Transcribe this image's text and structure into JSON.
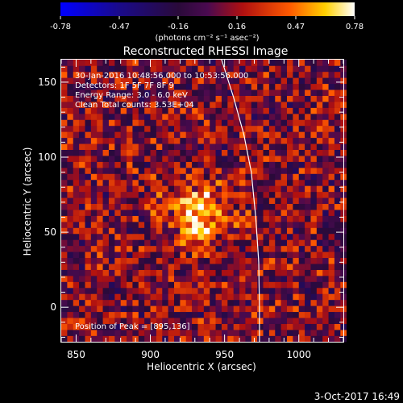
{
  "colorbar": {
    "ticks": [
      "-0.78",
      "-0.47",
      "-0.16",
      "0.16",
      "0.47",
      "0.78"
    ],
    "units": "(photons cm⁻² s⁻¹ asec⁻²)",
    "range": [
      -0.78,
      0.78
    ]
  },
  "title": "Reconstructed RHESSI Image",
  "info_lines": [
    "30-Jan-2016 10:48:56.000 to 10:53:56.000",
    "Detectors: 1F 5F 7F 8F 9",
    "Energy Range: 3.0 - 6.0 keV",
    "Clean      Total counts: 3.53E+04"
  ],
  "peak_label": "Position of Peak = [895,136]",
  "footer_date": "3-Oct-2017 16:49",
  "colors": {
    "background": "#000000",
    "axes": "#ffffff",
    "limb": "#ffffff"
  },
  "chart_data": {
    "type": "heatmap",
    "title": "Reconstructed RHESSI Image",
    "xlabel": "Heliocentric X (arcsec)",
    "ylabel": "Heliocentric Y (arcsec)",
    "xlim": [
      840,
      1030
    ],
    "ylim": [
      -23,
      165
    ],
    "xticks": [
      850,
      900,
      950,
      1000
    ],
    "yticks": [
      0,
      50,
      100,
      150
    ],
    "colormap": "blue-black-red-yellow-white",
    "value_range": [
      -0.78,
      0.78
    ],
    "pixel_size_arcsec": 4,
    "sources": [
      {
        "x": 932,
        "y": 63,
        "peak": 0.6
      }
    ],
    "peak_position": [
      895,
      136
    ],
    "limb_curve": [
      [
        948,
        165
      ],
      [
        956,
        140
      ],
      [
        963,
        115
      ],
      [
        968,
        90
      ],
      [
        971,
        60
      ],
      [
        973,
        30
      ],
      [
        973.5,
        0
      ],
      [
        973.5,
        -23
      ]
    ]
  }
}
